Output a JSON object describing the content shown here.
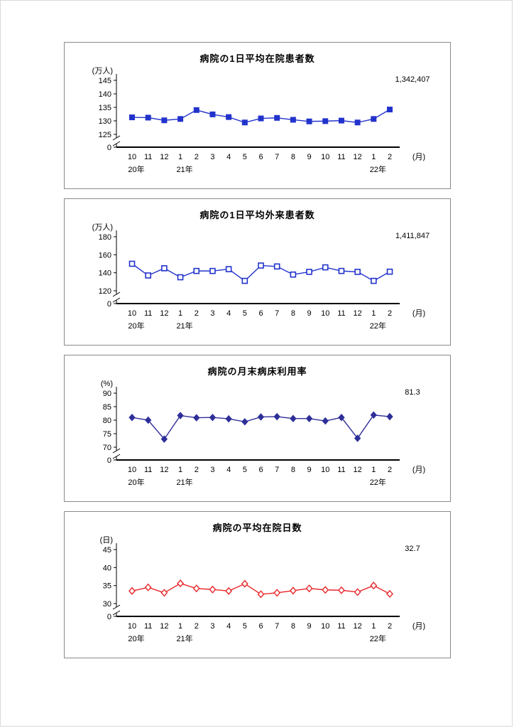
{
  "months": [
    "10",
    "11",
    "12",
    "1",
    "2",
    "3",
    "4",
    "5",
    "6",
    "7",
    "8",
    "9",
    "10",
    "11",
    "12",
    "1",
    "2"
  ],
  "month_axis_label": "(月)",
  "year_labels": [
    {
      "text": "20年",
      "index": 0
    },
    {
      "text": "21年",
      "index": 3
    },
    {
      "text": "22年",
      "index": 15
    }
  ],
  "zero_label": "0",
  "chart_data": [
    {
      "type": "line",
      "title": "病院の1日平均在院患者数",
      "unit": "(万人)",
      "yticks": [
        145,
        140,
        135,
        130,
        125
      ],
      "ymin": 125,
      "ymax": 145,
      "annotation": "1,342,407",
      "marker": "square-filled",
      "color": "#2233cc",
      "legend": "none",
      "grid": false,
      "x_categories": [
        "10",
        "11",
        "12",
        "1",
        "2",
        "3",
        "4",
        "5",
        "6",
        "7",
        "8",
        "9",
        "10",
        "11",
        "12",
        "1",
        "2"
      ],
      "values": [
        131.3,
        131.2,
        130.2,
        130.7,
        134.0,
        132.4,
        131.4,
        129.4,
        130.9,
        131.1,
        130.4,
        129.8,
        129.9,
        130.1,
        129.4,
        130.7,
        134.2
      ]
    },
    {
      "type": "line",
      "title": "病院の1日平均外来患者数",
      "unit": "(万人)",
      "yticks": [
        180,
        160,
        140,
        120
      ],
      "ymin": 120,
      "ymax": 180,
      "annotation": "1,411,847",
      "marker": "square-open",
      "color": "#2233cc",
      "legend": "none",
      "grid": false,
      "x_categories": [
        "10",
        "11",
        "12",
        "1",
        "2",
        "3",
        "4",
        "5",
        "6",
        "7",
        "8",
        "9",
        "10",
        "11",
        "12",
        "1",
        "2"
      ],
      "values": [
        150,
        137,
        145,
        135,
        142,
        142,
        144,
        131,
        148,
        147,
        138,
        141,
        146,
        142,
        141,
        131,
        141.2
      ]
    },
    {
      "type": "line",
      "title": "病院の月末病床利用率",
      "unit": "(%)",
      "yticks": [
        90,
        85,
        80,
        75,
        70
      ],
      "ymin": 70,
      "ymax": 90,
      "annotation": "81.3",
      "marker": "diamond-filled",
      "color": "#2e2e99",
      "legend": "none",
      "grid": false,
      "x_categories": [
        "10",
        "11",
        "12",
        "1",
        "2",
        "3",
        "4",
        "5",
        "6",
        "7",
        "8",
        "9",
        "10",
        "11",
        "12",
        "1",
        "2"
      ],
      "values": [
        81.0,
        80.0,
        73.0,
        81.7,
        80.9,
        81.0,
        80.5,
        79.4,
        81.2,
        81.3,
        80.6,
        80.6,
        79.7,
        81.0,
        73.3,
        81.9,
        81.3
      ]
    },
    {
      "type": "line",
      "title": "病院の平均在院日数",
      "unit": "(日)",
      "yticks": [
        45,
        40,
        35,
        30
      ],
      "ymin": 30,
      "ymax": 45,
      "annotation": "32.7",
      "marker": "diamond-open",
      "color": "#e8262a",
      "legend": "none",
      "grid": false,
      "x_categories": [
        "10",
        "11",
        "12",
        "1",
        "2",
        "3",
        "4",
        "5",
        "6",
        "7",
        "8",
        "9",
        "10",
        "11",
        "12",
        "1",
        "2"
      ],
      "values": [
        33.5,
        34.5,
        33.0,
        35.6,
        34.2,
        33.9,
        33.5,
        35.5,
        32.6,
        33.0,
        33.6,
        34.2,
        33.8,
        33.7,
        33.2,
        35.0,
        32.7
      ]
    }
  ]
}
